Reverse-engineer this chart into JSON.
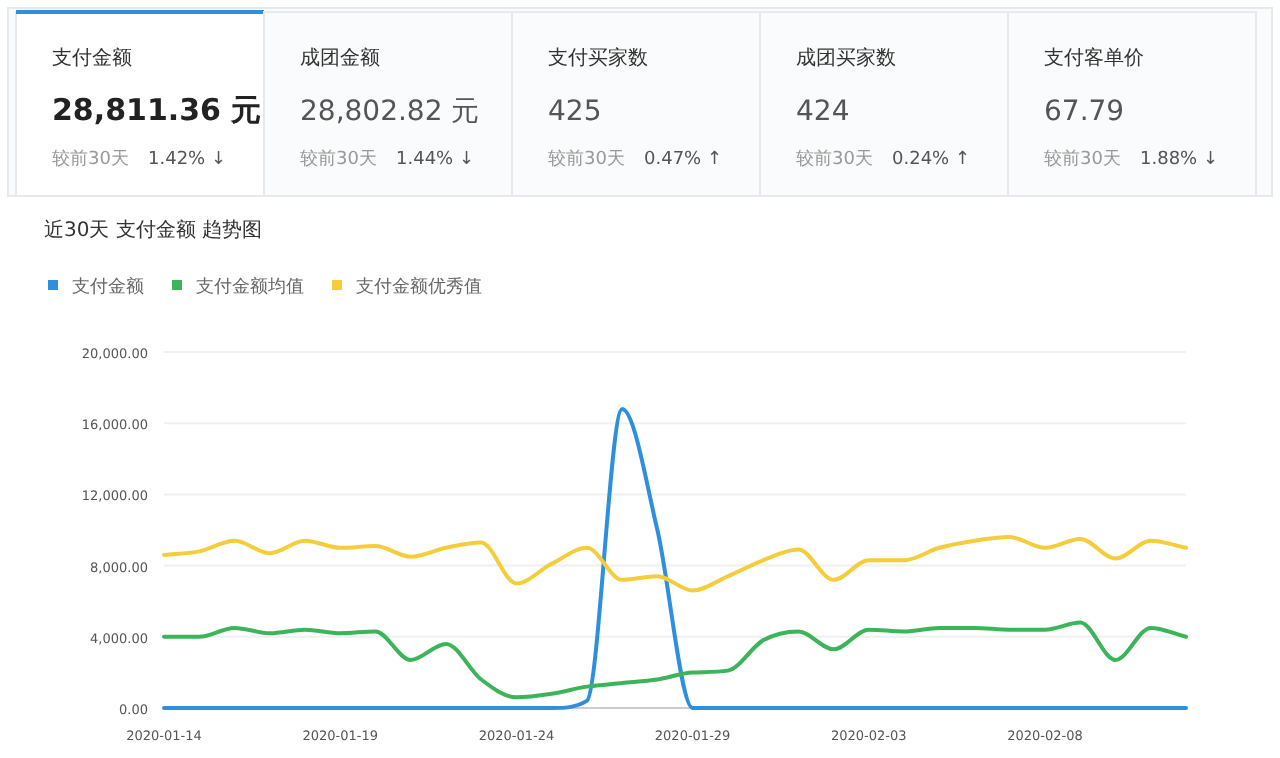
{
  "chart_data": [
    {
      "type": "other",
      "categories": [
        "支付金额",
        "成团金额",
        "支付买家数",
        "成团买家数",
        "支付客单价"
      ],
      "annotations": [
        "28,811.36 元",
        "较前30天",
        "1.42% ↓",
        "28,802.82 元",
        "较前30天",
        "1.44% ↓",
        "425",
        "较前30天",
        "0.47% ↑",
        "424",
        "较前30天",
        "0.24% ↑",
        "67.79",
        "较前30天",
        "1.88% ↓"
      ]
    },
    {
      "type": "line",
      "title": "近30天 支付金额 趋势图",
      "legend": "top left",
      "grid": "y",
      "x": [
        "2020-01-14",
        "2020-01-15",
        "2020-01-16",
        "2020-01-17",
        "2020-01-18",
        "2020-01-19",
        "2020-01-20",
        "2020-01-21",
        "2020-01-22",
        "2020-01-23",
        "2020-01-24",
        "2020-01-25",
        "2020-01-26",
        "2020-01-27",
        "2020-01-28",
        "2020-01-29",
        "2020-01-30",
        "2020-01-31",
        "2020-02-01",
        "2020-02-02",
        "2020-02-03",
        "2020-02-04",
        "2020-02-05",
        "2020-02-06",
        "2020-02-07",
        "2020-02-08",
        "2020-02-09",
        "2020-02-10",
        "2020-02-11",
        "2020-02-12"
      ],
      "xlim": [
        "2020-01-14",
        "2020-02-12"
      ],
      "xticks": [
        "2020-01-14",
        "2020-01-19",
        "2020-01-24",
        "2020-01-29",
        "2020-02-03",
        "2020-02-08"
      ],
      "ylim": [
        0,
        20000
      ],
      "yticks": [
        {
          "value": 0,
          "label": "0.00"
        },
        {
          "value": 4000,
          "label": "4,000.00"
        },
        {
          "value": 8000,
          "label": "8,000.00"
        },
        {
          "value": 12000,
          "label": "12,000.00"
        },
        {
          "value": 16000,
          "label": "16,000.00"
        },
        {
          "value": 20000,
          "label": "20,000.00"
        }
      ],
      "marker": "none",
      "series": [
        {
          "name": "支付金额",
          "color": "#2f8fdf",
          "values": [
            0,
            0,
            0,
            0,
            0,
            0,
            0,
            0,
            0,
            0,
            0,
            0,
            400,
            16800,
            10000,
            0,
            0,
            0,
            0,
            0,
            0,
            0,
            0,
            0,
            0,
            0,
            0,
            0,
            0,
            0
          ]
        },
        {
          "name": "支付金额均值",
          "color": "#3cb55a",
          "values": [
            4000,
            4000,
            4500,
            4200,
            4400,
            4200,
            4300,
            2700,
            3600,
            1600,
            600,
            800,
            1200,
            1400,
            1600,
            2000,
            2100,
            3800,
            4300,
            3300,
            4400,
            4300,
            4500,
            4500,
            4400,
            4400,
            4800,
            2700,
            4500,
            4000
          ]
        },
        {
          "name": "支付金额优秀值",
          "color": "#f5cd3a",
          "values": [
            8600,
            8800,
            9400,
            8700,
            9400,
            9000,
            9100,
            8500,
            9000,
            9300,
            7000,
            8100,
            9000,
            7200,
            7400,
            6600,
            7400,
            8300,
            8900,
            7200,
            8300,
            8300,
            9000,
            9400,
            9600,
            9000,
            9500,
            8400,
            9400,
            9000
          ]
        }
      ]
    }
  ]
}
